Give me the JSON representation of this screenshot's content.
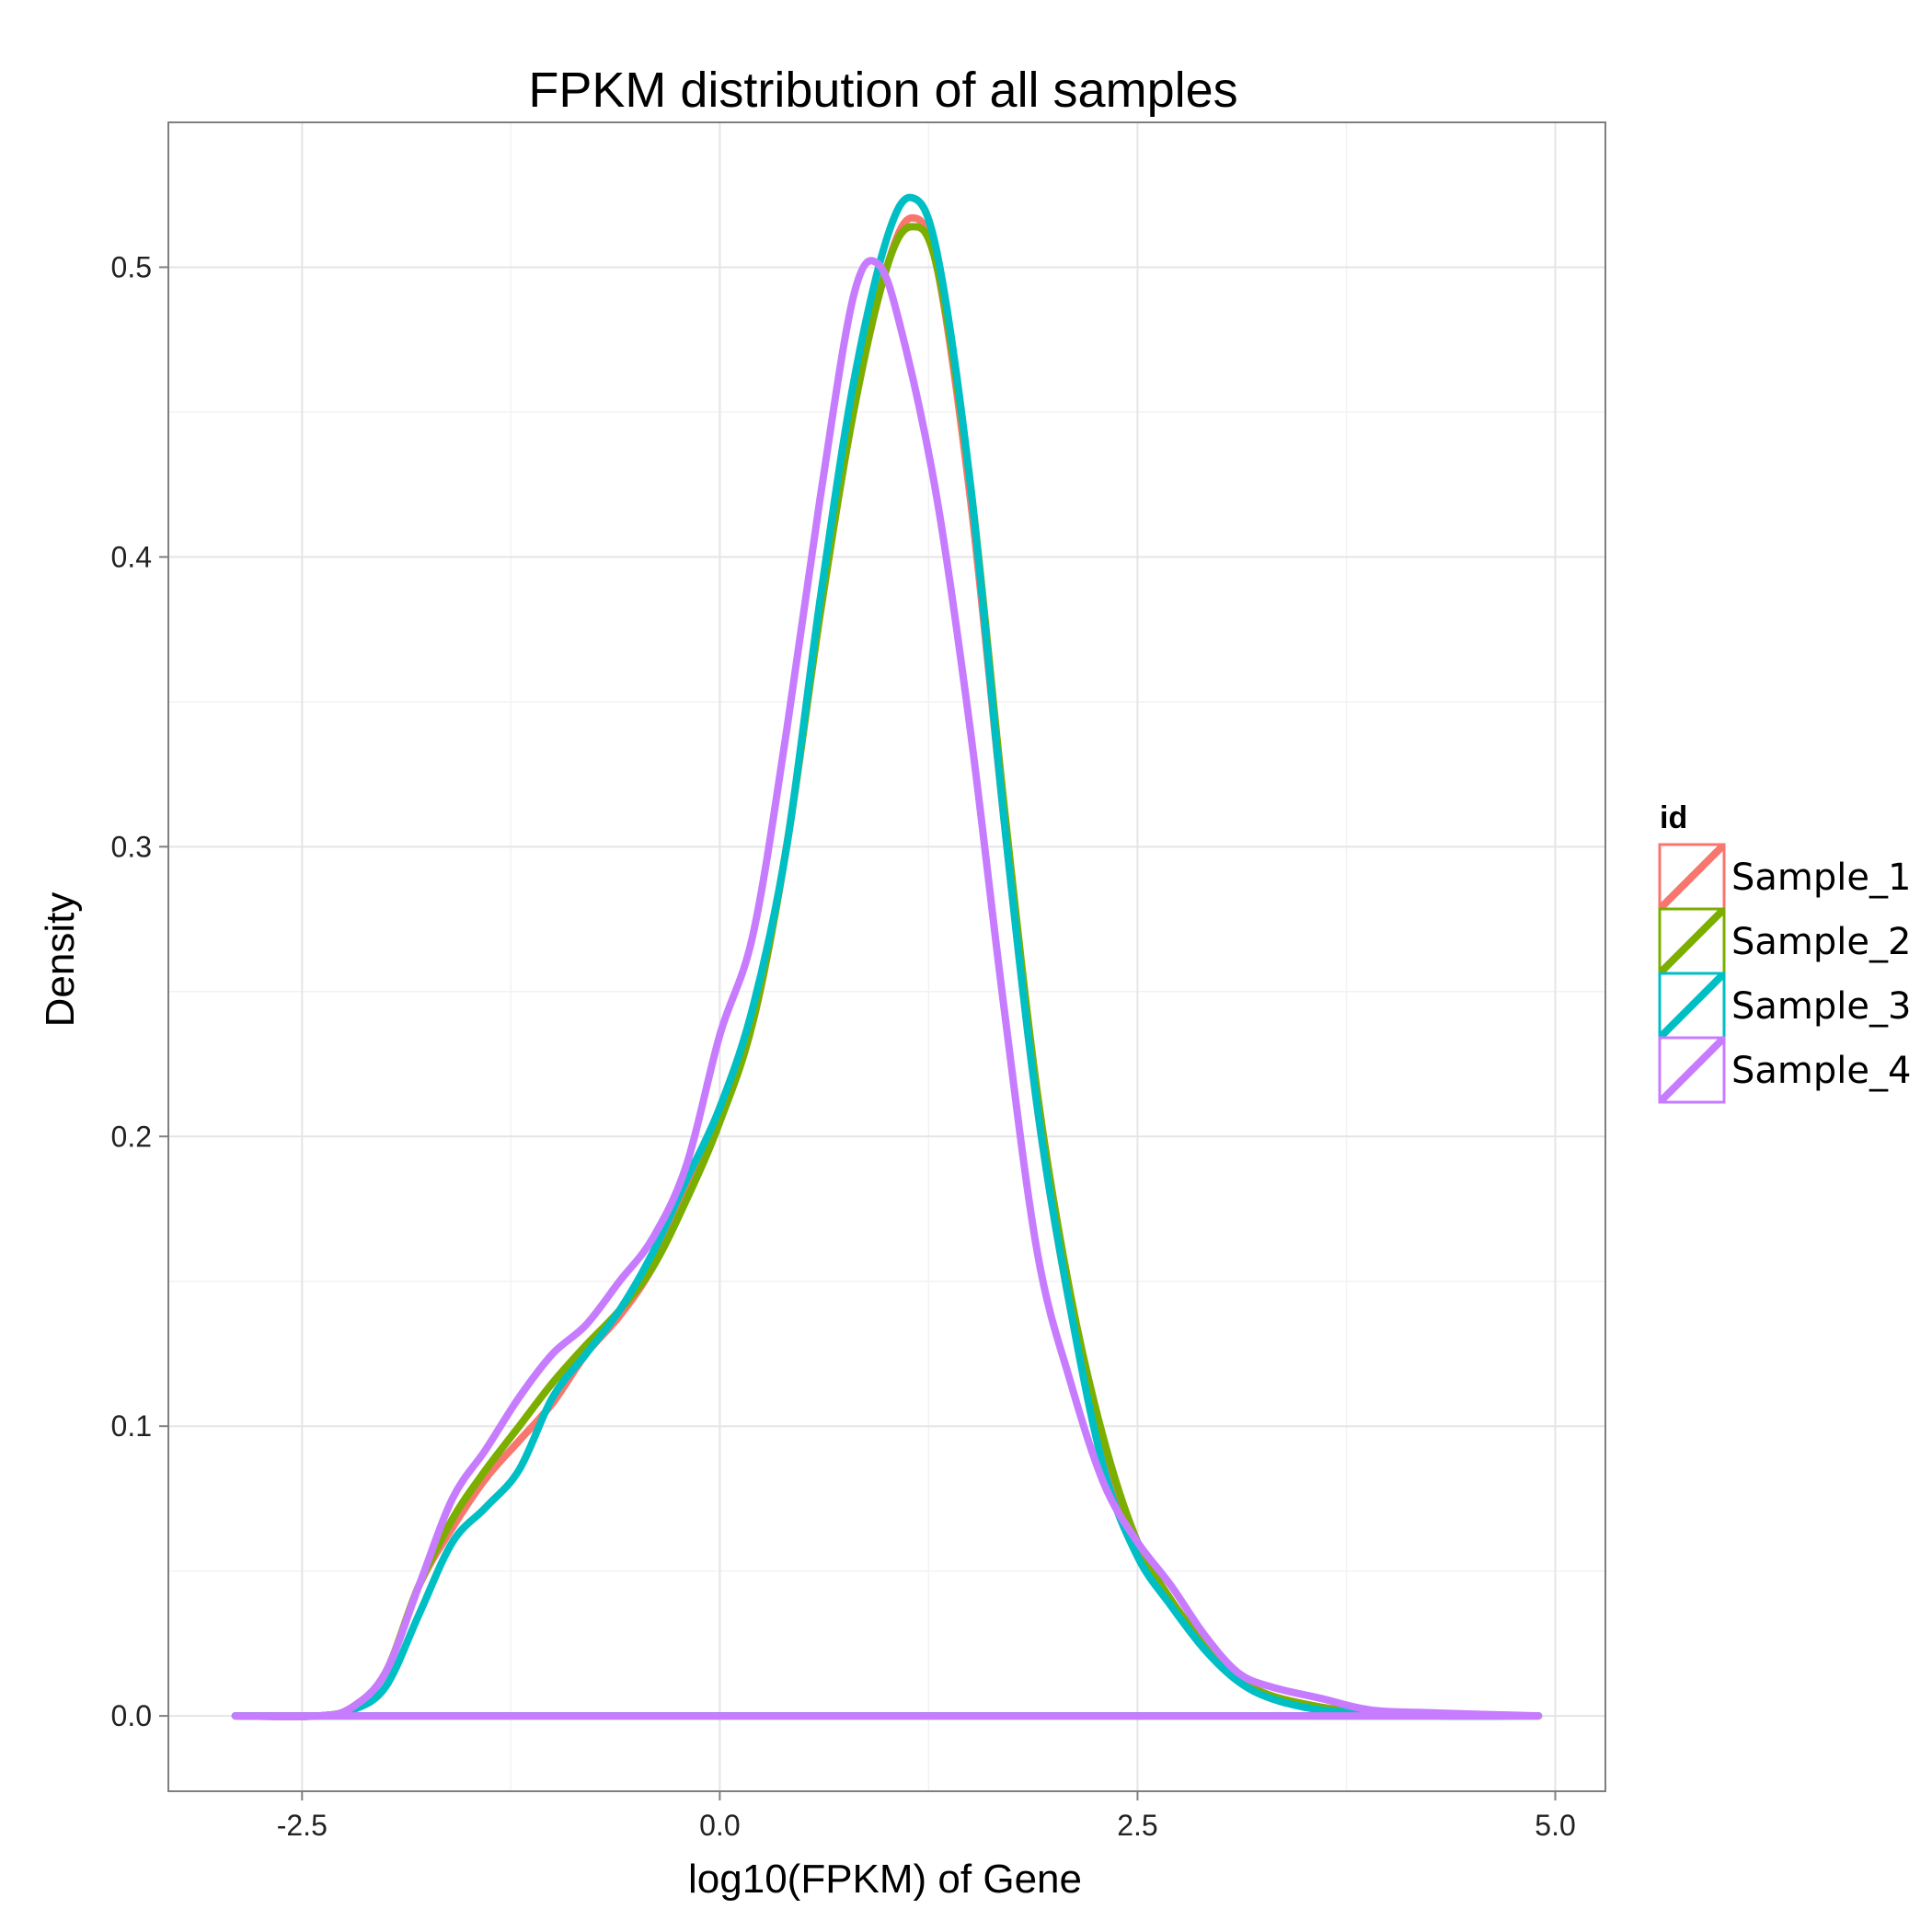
{
  "chart_data": {
    "type": "line",
    "title": "FPKM distribution of all samples",
    "xlabel": "log10(FPKM) of Gene",
    "ylabel": "Density",
    "xlim": [
      -3.3,
      5.3
    ],
    "ylim": [
      -0.026,
      0.55
    ],
    "xticks": [
      -2.5,
      0.0,
      2.5,
      5.0
    ],
    "xtick_labels": [
      "-2.5",
      "0.0",
      "2.5",
      "5.0"
    ],
    "yticks": [
      0.0,
      0.1,
      0.2,
      0.3,
      0.4,
      0.5
    ],
    "ytick_labels": [
      "0.0",
      "0.1",
      "0.2",
      "0.3",
      "0.4",
      "0.5"
    ],
    "grid": true,
    "legend": {
      "title": "id",
      "placement": "right"
    },
    "series": [
      {
        "name": "Sample_1",
        "color": "#F8766D",
        "x": [
          -2.9,
          -2.4,
          -2.2,
          -2.0,
          -1.8,
          -1.6,
          -1.4,
          -1.2,
          -1.0,
          -0.8,
          -0.6,
          -0.4,
          -0.2,
          0.0,
          0.2,
          0.4,
          0.6,
          0.8,
          1.0,
          1.15,
          1.3,
          1.5,
          1.7,
          1.9,
          2.1,
          2.3,
          2.5,
          2.7,
          2.9,
          3.1,
          3.3,
          3.6,
          3.9,
          4.3,
          4.9
        ],
        "y": [
          0.0,
          0.0,
          0.003,
          0.015,
          0.045,
          0.065,
          0.082,
          0.095,
          0.108,
          0.125,
          0.138,
          0.155,
          0.18,
          0.21,
          0.24,
          0.3,
          0.38,
          0.45,
          0.5,
          0.517,
          0.5,
          0.42,
          0.31,
          0.21,
          0.14,
          0.09,
          0.06,
          0.04,
          0.025,
          0.013,
          0.007,
          0.003,
          0.001,
          0.0,
          0.0
        ]
      },
      {
        "name": "Sample_2",
        "color": "#7CAE00",
        "x": [
          -2.9,
          -2.4,
          -2.2,
          -2.0,
          -1.8,
          -1.6,
          -1.4,
          -1.2,
          -1.0,
          -0.8,
          -0.6,
          -0.4,
          -0.2,
          0.0,
          0.2,
          0.4,
          0.6,
          0.8,
          1.0,
          1.15,
          1.3,
          1.5,
          1.7,
          1.9,
          2.1,
          2.3,
          2.5,
          2.7,
          2.9,
          3.1,
          3.3,
          3.6,
          3.9,
          4.3,
          4.9
        ],
        "y": [
          0.0,
          0.0,
          0.003,
          0.015,
          0.045,
          0.068,
          0.085,
          0.1,
          0.115,
          0.128,
          0.14,
          0.155,
          0.178,
          0.205,
          0.24,
          0.3,
          0.38,
          0.45,
          0.5,
          0.514,
          0.5,
          0.425,
          0.315,
          0.215,
          0.145,
          0.095,
          0.06,
          0.04,
          0.025,
          0.013,
          0.007,
          0.003,
          0.001,
          0.0,
          0.0
        ]
      },
      {
        "name": "Sample_3",
        "color": "#00BFC4",
        "x": [
          -2.9,
          -2.4,
          -2.2,
          -2.0,
          -1.8,
          -1.6,
          -1.4,
          -1.2,
          -1.0,
          -0.8,
          -0.6,
          -0.4,
          -0.2,
          0.0,
          0.2,
          0.4,
          0.6,
          0.8,
          1.0,
          1.15,
          1.3,
          1.5,
          1.7,
          1.9,
          2.1,
          2.3,
          2.5,
          2.7,
          2.9,
          3.1,
          3.3,
          3.6,
          3.9,
          4.3,
          4.9
        ],
        "y": [
          0.0,
          0.0,
          0.002,
          0.01,
          0.035,
          0.06,
          0.072,
          0.085,
          0.11,
          0.125,
          0.14,
          0.16,
          0.185,
          0.21,
          0.245,
          0.3,
          0.385,
          0.46,
          0.51,
          0.524,
          0.505,
          0.425,
          0.31,
          0.21,
          0.14,
          0.085,
          0.055,
          0.038,
          0.023,
          0.012,
          0.006,
          0.002,
          0.001,
          0.0,
          0.0
        ]
      },
      {
        "name": "Sample_4",
        "color": "#C77CFF",
        "x": [
          -2.9,
          -2.4,
          -2.2,
          -2.0,
          -1.8,
          -1.6,
          -1.4,
          -1.2,
          -1.0,
          -0.8,
          -0.6,
          -0.4,
          -0.2,
          0.0,
          0.2,
          0.4,
          0.6,
          0.8,
          0.95,
          1.1,
          1.3,
          1.5,
          1.7,
          1.9,
          2.1,
          2.3,
          2.5,
          2.7,
          2.9,
          3.1,
          3.3,
          3.6,
          3.9,
          4.3,
          4.9
        ],
        "y": [
          0.0,
          0.0,
          0.003,
          0.015,
          0.045,
          0.075,
          0.092,
          0.11,
          0.125,
          0.135,
          0.15,
          0.165,
          0.19,
          0.235,
          0.27,
          0.34,
          0.42,
          0.49,
          0.501,
          0.475,
          0.42,
          0.34,
          0.245,
          0.16,
          0.115,
          0.08,
          0.06,
          0.045,
          0.028,
          0.015,
          0.01,
          0.006,
          0.002,
          0.001,
          0.0
        ]
      }
    ]
  }
}
